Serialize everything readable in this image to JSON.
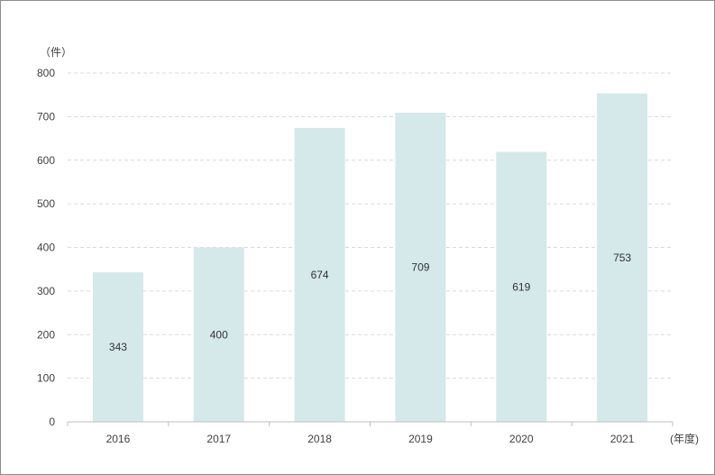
{
  "chart_data": {
    "type": "bar",
    "title": "",
    "ylabel": "（件）",
    "xlabel": "(年度)",
    "categories": [
      "2016",
      "2017",
      "2018",
      "2019",
      "2020",
      "2021"
    ],
    "values": [
      343,
      400,
      674,
      709,
      619,
      753
    ],
    "data_labels": [
      "343",
      "400",
      "674",
      "709",
      "619",
      "753"
    ],
    "yticks": [
      0,
      100,
      200,
      300,
      400,
      500,
      600,
      700,
      800
    ],
    "ylim": [
      0,
      800
    ],
    "grid": true,
    "legend": "none"
  },
  "colors": {
    "bar": "#d5e8ea",
    "grid": "#d9d9d9",
    "axis": "#bfbfbf",
    "text": "#404040",
    "border": "#8c8c8c"
  }
}
